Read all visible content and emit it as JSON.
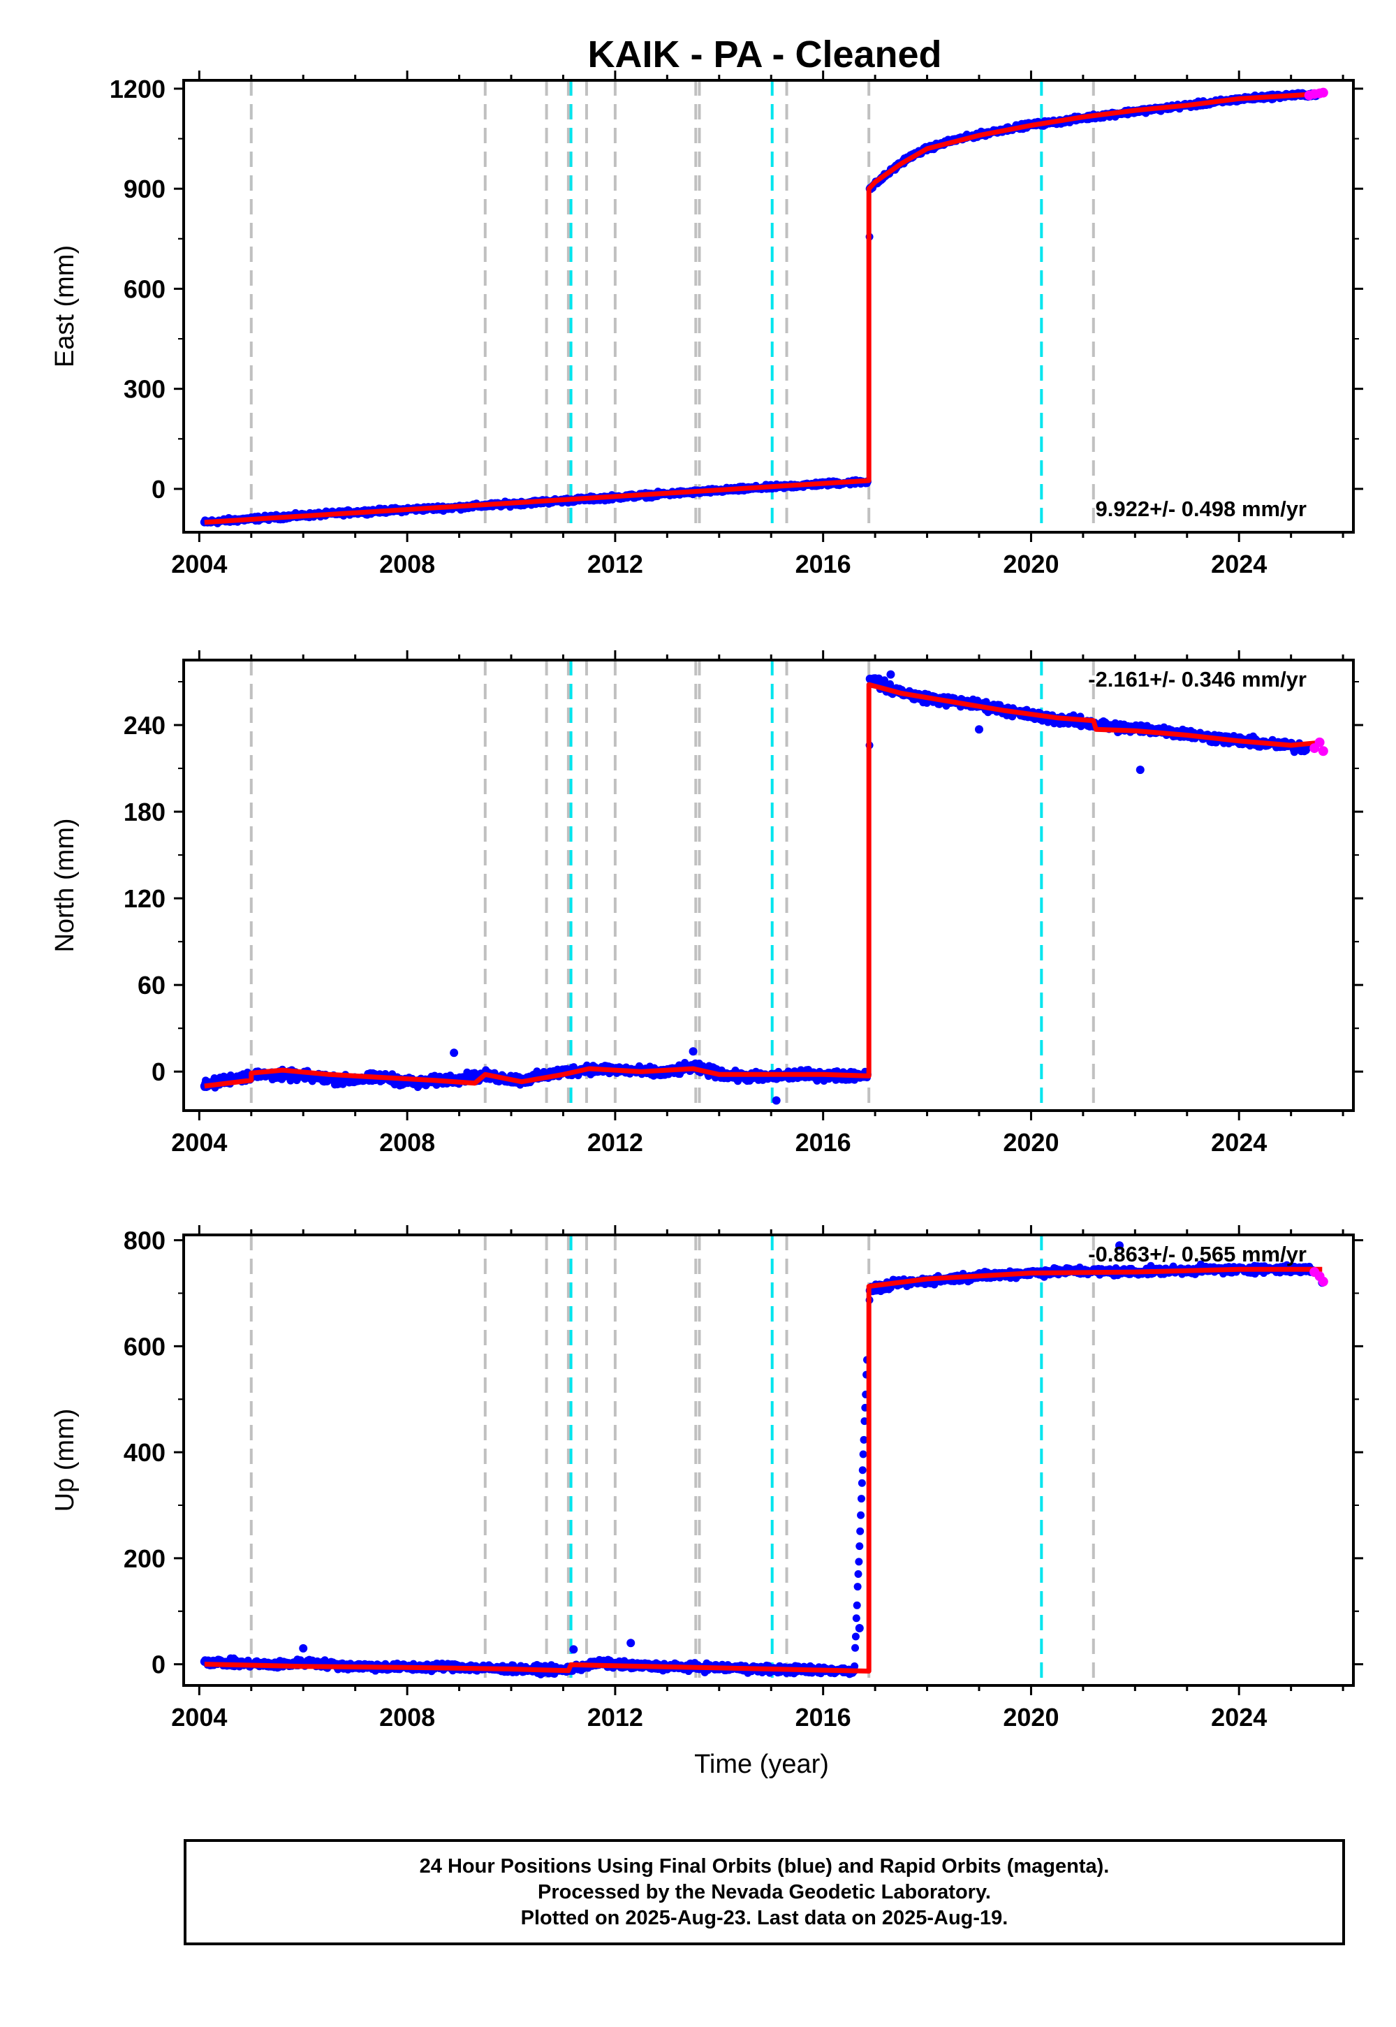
{
  "title": "KAIK  - PA - Cleaned",
  "footer": {
    "line1": "24 Hour Positions Using Final Orbits (blue) and Rapid Orbits (magenta).",
    "line2": "Processed by the Nevada Geodetic Laboratory.",
    "line3": "Plotted on 2025-Aug-23. Last data on 2025-Aug-19."
  },
  "colors": {
    "final_orbits": "#0000ff",
    "rapid_orbits": "#ff00ff",
    "model": "#ff0000",
    "event_gray": "#c0c0c0",
    "event_cyan": "#00e5ee"
  },
  "chart_data": [
    {
      "type": "scatter",
      "panel": "east",
      "ylabel": "East (mm)",
      "xlim": [
        2003.7,
        2026.2
      ],
      "ylim": [
        -130,
        1225
      ],
      "xticks": [
        2004,
        2008,
        2012,
        2016,
        2020,
        2024
      ],
      "yticks": [
        0,
        300,
        600,
        900,
        1200
      ],
      "rate_label": "9.922+/- 0.498 mm/yr",
      "rate_position": "bottom-right",
      "offset_events_gray": [
        2005.0,
        2009.5,
        2010.68,
        2011.1,
        2011.45,
        2012.0,
        2013.55,
        2013.62,
        2015.3,
        2016.88,
        2021.2
      ],
      "offset_events_cyan": [
        2011.15,
        2015.02,
        2020.2
      ],
      "model": {
        "x": [
          2004.1,
          2016.88,
          2016.88,
          2017.0,
          2017.5,
          2018.0,
          2019.0,
          2020.0,
          2021.0,
          2022.0,
          2023.0,
          2024.0,
          2025.6
        ],
        "y": [
          -100,
          25,
          900,
          920,
          975,
          1020,
          1060,
          1090,
          1115,
          1135,
          1150,
          1170,
          1185
        ]
      },
      "final_orbits": {
        "x": [
          2004.1,
          2005,
          2006,
          2007,
          2008,
          2009,
          2010,
          2011,
          2012,
          2013,
          2014,
          2015,
          2016,
          2016.85,
          2016.9,
          2017.2,
          2017.6,
          2018,
          2018.5,
          2019,
          2019.5,
          2020,
          2020.5,
          2021,
          2021.5,
          2022,
          2022.5,
          2023,
          2023.5,
          2024,
          2024.5,
          2025,
          2025.5
        ],
        "y": [
          -100,
          -90,
          -80,
          -70,
          -62,
          -55,
          -45,
          -35,
          -25,
          -15,
          -5,
          5,
          15,
          22,
          900,
          940,
          990,
          1020,
          1045,
          1062,
          1078,
          1092,
          1100,
          1112,
          1122,
          1132,
          1140,
          1150,
          1158,
          1168,
          1175,
          1180,
          1183
        ]
      },
      "rapid_orbits": {
        "x": [
          2025.35,
          2025.45,
          2025.55,
          2025.62
        ],
        "y": [
          1180,
          1184,
          1186,
          1188
        ]
      }
    },
    {
      "type": "scatter",
      "panel": "north",
      "ylabel": "North (mm)",
      "xlim": [
        2003.7,
        2026.2
      ],
      "ylim": [
        -27,
        285
      ],
      "xticks": [
        2004,
        2008,
        2012,
        2016,
        2020,
        2024
      ],
      "yticks": [
        0,
        60,
        120,
        180,
        240
      ],
      "rate_label": "-2.161+/- 0.346 mm/yr",
      "rate_position": "top-right",
      "offset_events_gray": [
        2005.0,
        2009.5,
        2010.68,
        2011.1,
        2011.45,
        2012.0,
        2013.55,
        2013.62,
        2015.3,
        2016.88,
        2021.2
      ],
      "offset_events_cyan": [
        2011.15,
        2015.02,
        2020.2
      ],
      "model": {
        "x": [
          2004.1,
          2005.0,
          2005.0,
          2005.6,
          2006.5,
          2007.5,
          2008.5,
          2009.3,
          2009.5,
          2010.2,
          2011.0,
          2011.5,
          2012.5,
          2013.5,
          2014.0,
          2015.0,
          2016.0,
          2016.88,
          2016.88,
          2017.5,
          2018.5,
          2019.5,
          2020.5,
          2021.2,
          2021.25,
          2022.0,
          2023.0,
          2024.0,
          2025.0,
          2025.6
        ],
        "y": [
          -10,
          -6,
          -1,
          1,
          -2,
          -4,
          -6,
          -8,
          -2,
          -7,
          -2,
          2,
          0,
          2,
          -2,
          -2,
          -2,
          -3,
          268,
          262,
          256,
          250,
          245,
          243,
          237,
          236,
          233,
          229,
          226,
          228
        ]
      },
      "final_orbits": {
        "x": [
          2004.1,
          2004.6,
          2005.2,
          2006.0,
          2006.8,
          2007.5,
          2008.2,
          2008.9,
          2009.5,
          2010.2,
          2010.9,
          2011.5,
          2012.2,
          2012.9,
          2013.5,
          2014.2,
          2014.9,
          2015.5,
          2016.2,
          2016.85,
          2016.9,
          2017.3,
          2017.8,
          2018.3,
          2018.8,
          2019.3,
          2019.8,
          2020.3,
          2020.8,
          2021.3,
          2021.8,
          2022.3,
          2022.8,
          2023.3,
          2023.8,
          2024.3,
          2024.8,
          2025.3
        ],
        "y": [
          -10,
          -5,
          -2,
          -3,
          -6,
          -4,
          -8,
          -5,
          -3,
          -6,
          -1,
          2,
          1,
          -1,
          3,
          -3,
          -4,
          -2,
          -3,
          -2,
          272,
          265,
          260,
          257,
          255,
          252,
          248,
          245,
          243,
          240,
          238,
          237,
          235,
          232,
          230,
          228,
          226,
          224
        ]
      },
      "outliers": {
        "x": [
          2008.9,
          2013.5,
          2015.1,
          2022.1,
          2017.3,
          2019.0
        ],
        "y": [
          13,
          14,
          -20,
          209,
          275,
          237
        ]
      },
      "rapid_orbits": {
        "x": [
          2025.45,
          2025.55,
          2025.62
        ],
        "y": [
          224,
          228,
          222
        ]
      }
    },
    {
      "type": "scatter",
      "panel": "up",
      "ylabel": "Up (mm)",
      "xlabel": "Time (year)",
      "xlim": [
        2003.7,
        2026.2
      ],
      "ylim": [
        -40,
        810
      ],
      "xticks": [
        2004,
        2008,
        2012,
        2016,
        2020,
        2024
      ],
      "yticks": [
        0,
        200,
        400,
        600,
        800
      ],
      "rate_label": "-0.863+/- 0.565 mm/yr",
      "rate_position": "top-right",
      "offset_events_gray": [
        2005.0,
        2009.5,
        2010.68,
        2011.1,
        2011.45,
        2012.0,
        2013.55,
        2013.62,
        2015.3,
        2016.88,
        2021.2
      ],
      "offset_events_cyan": [
        2011.15,
        2015.02,
        2020.2
      ],
      "model": {
        "x": [
          2004.1,
          2006.0,
          2008.0,
          2010.0,
          2011.1,
          2011.15,
          2013.0,
          2015.0,
          2016.88,
          2016.88,
          2018.0,
          2020.0,
          2022.0,
          2024.0,
          2025.6
        ],
        "y": [
          0,
          -4,
          -6,
          -9,
          -12,
          -1,
          -5,
          -9,
          -13,
          713,
          727,
          738,
          740,
          745,
          745
        ]
      },
      "final_orbits": {
        "x": [
          2004.1,
          2004.7,
          2005.4,
          2006.1,
          2006.8,
          2007.5,
          2008.2,
          2008.9,
          2009.6,
          2010.3,
          2011.0,
          2011.7,
          2012.4,
          2013.1,
          2013.8,
          2014.5,
          2015.2,
          2015.9,
          2016.6,
          2016.9,
          2017.4,
          2017.9,
          2018.4,
          2018.9,
          2019.4,
          2019.9,
          2020.4,
          2020.9,
          2021.4,
          2021.9,
          2022.4,
          2022.9,
          2023.4,
          2023.9,
          2024.4,
          2024.9,
          2025.4
        ],
        "y": [
          5,
          2,
          -1,
          3,
          -3,
          -5,
          -6,
          -4,
          -8,
          -10,
          -11,
          2,
          -3,
          -5,
          -6,
          -8,
          -10,
          -11,
          -12,
          705,
          718,
          722,
          727,
          732,
          735,
          738,
          740,
          742,
          741,
          740,
          742,
          743,
          745,
          744,
          746,
          745,
          744
        ]
      },
      "outliers": {
        "x": [
          2006.0,
          2011.2,
          2012.3,
          2016.7,
          2021.7,
          2025.6
        ],
        "y": [
          30,
          28,
          40,
          68,
          790,
          720
        ]
      },
      "rapid_orbits": {
        "x": [
          2025.45,
          2025.55,
          2025.62
        ],
        "y": [
          740,
          732,
          722
        ]
      }
    }
  ]
}
